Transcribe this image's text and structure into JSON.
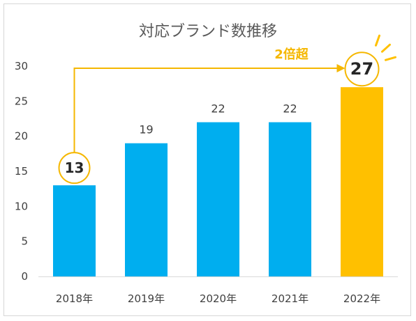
{
  "chart_data": {
    "type": "bar",
    "title": "対応ブランド数推移",
    "categories": [
      "2018年",
      "2019年",
      "2020年",
      "2021年",
      "2022年"
    ],
    "values": [
      13,
      19,
      22,
      22,
      27
    ],
    "ylim": [
      0,
      30
    ],
    "yticks": [
      0,
      5,
      10,
      15,
      20,
      25,
      30
    ],
    "grid": false,
    "legend": "none",
    "colors": {
      "bar": "#00aeef",
      "highlight": "#ffc000",
      "annotation": "#f5b700"
    },
    "highlight_index": 4,
    "annotation": {
      "label": "2倍超",
      "from_index": 0,
      "to_index": 4
    }
  }
}
